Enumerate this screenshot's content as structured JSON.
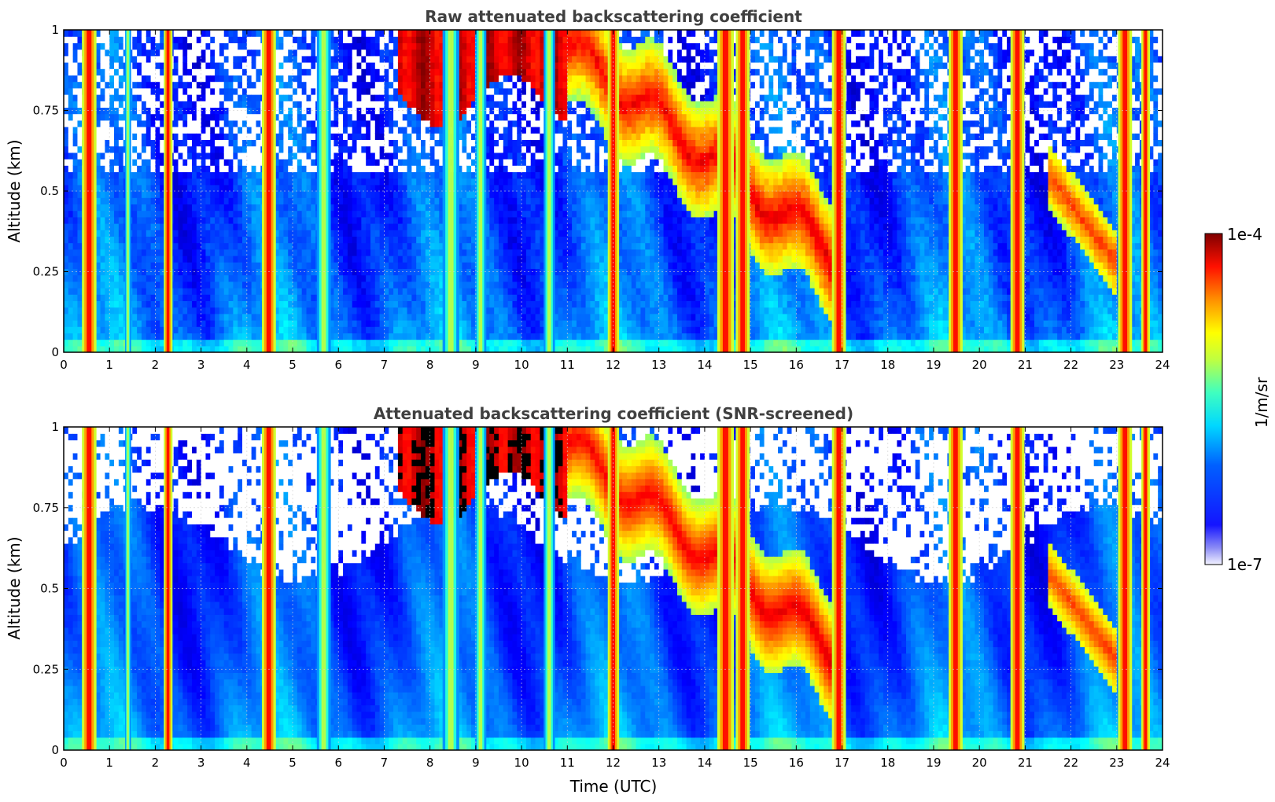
{
  "chart_data": [
    {
      "type": "heatmap",
      "title": "Raw attenuated backscattering coefficient",
      "xlabel": "",
      "ylabel": "Altitude (km)",
      "xlim": [
        0,
        24
      ],
      "ylim": [
        0,
        1
      ],
      "xticks": [
        "0",
        "1",
        "2",
        "3",
        "4",
        "5",
        "6",
        "7",
        "8",
        "9",
        "10",
        "11",
        "12",
        "13",
        "14",
        "15",
        "16",
        "17",
        "18",
        "19",
        "20",
        "21",
        "22",
        "23",
        "24"
      ],
      "yticks": [
        "0",
        "0.25",
        "0.5",
        "0.75",
        "1"
      ],
      "grid": true,
      "colormap": "jet",
      "screened": false,
      "vertical_features_utc": [
        {
          "t0": 0.42,
          "t1": 0.68,
          "level": "high"
        },
        {
          "t0": 1.35,
          "t1": 1.45,
          "level": "mid"
        },
        {
          "t0": 2.2,
          "t1": 2.35,
          "level": "high"
        },
        {
          "t0": 4.35,
          "t1": 4.6,
          "level": "high"
        },
        {
          "t0": 5.55,
          "t1": 5.8,
          "level": "mid"
        },
        {
          "t0": 8.3,
          "t1": 8.6,
          "level": "mid"
        },
        {
          "t0": 9.0,
          "t1": 9.2,
          "level": "mid"
        },
        {
          "t0": 10.5,
          "t1": 10.7,
          "level": "mid"
        },
        {
          "t0": 11.9,
          "t1": 12.1,
          "level": "high"
        },
        {
          "t0": 14.3,
          "t1": 14.6,
          "level": "high"
        },
        {
          "t0": 14.7,
          "t1": 14.95,
          "level": "high"
        },
        {
          "t0": 16.8,
          "t1": 17.05,
          "level": "high"
        },
        {
          "t0": 19.35,
          "t1": 19.6,
          "level": "high"
        },
        {
          "t0": 20.7,
          "t1": 20.95,
          "level": "high"
        },
        {
          "t0": 23.05,
          "t1": 23.3,
          "level": "high"
        },
        {
          "t0": 23.55,
          "t1": 23.7,
          "level": "high"
        }
      ],
      "high_layer_utc": [
        7.3,
        11.0
      ],
      "descending_layer_utc": [
        11.0,
        16.5
      ]
    },
    {
      "type": "heatmap",
      "title": "Attenuated backscattering coefficient (SNR-screened)",
      "xlabel": "Time (UTC)",
      "ylabel": "Altitude (km)",
      "xlim": [
        0,
        24
      ],
      "ylim": [
        0,
        1
      ],
      "xticks": [
        "0",
        "1",
        "2",
        "3",
        "4",
        "5",
        "6",
        "7",
        "8",
        "9",
        "10",
        "11",
        "12",
        "13",
        "14",
        "15",
        "16",
        "17",
        "18",
        "19",
        "20",
        "21",
        "22",
        "23",
        "24"
      ],
      "yticks": [
        "0",
        "0.25",
        "0.5",
        "0.75",
        "1"
      ],
      "grid": true,
      "colormap": "jet",
      "screened": true
    }
  ],
  "colorbar": {
    "label": "1/m/sr",
    "max_label": "1e-4",
    "min_label": "1e-7",
    "scale": "log",
    "colormap": "jet"
  }
}
